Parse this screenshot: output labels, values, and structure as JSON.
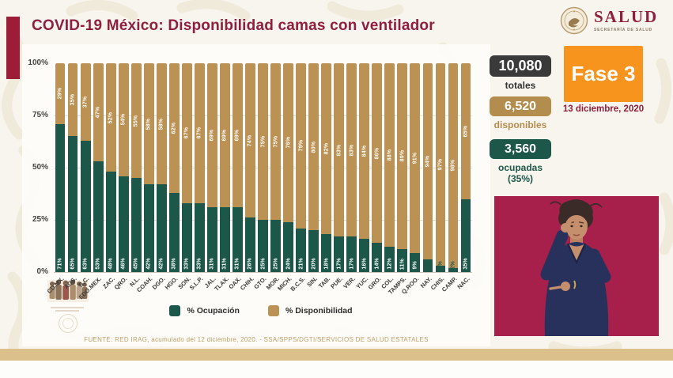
{
  "header": {
    "title": "COVID-19 México: Disponibilidad camas con ventilador"
  },
  "logo": {
    "title": "SALUD",
    "subtitle": "SECRETARÍA DE SALUD"
  },
  "phase": {
    "label": "Fase 3",
    "date": "13 diciembre, 2020"
  },
  "stats": [
    {
      "value": "10,080",
      "label": "totales",
      "box_color": "#3a3a3a"
    },
    {
      "value": "6,520",
      "label": "disponibles",
      "box_color": "#b38d4d"
    },
    {
      "value": "3,560",
      "label": "ocupadas",
      "sublabel": "(35%)",
      "box_color": "#1d574a"
    }
  ],
  "chart_data": {
    "type": "bar",
    "stacked": true,
    "title": "",
    "categories": [
      "CD.MX.",
      "AGS.",
      "B.C.",
      "EDO.MEX.",
      "ZAC.",
      "QRO.",
      "N.L.",
      "COAH.",
      "DGO.",
      "HGO.",
      "SON.",
      "S.L.P.",
      "JAL.",
      "TLAX.",
      "OAX.",
      "CHIH.",
      "GTO.",
      "MOR.",
      "MICH.",
      "B.C.S.",
      "SIN.",
      "TAB.",
      "PUE.",
      "VER.",
      "YUC.",
      "GRO.",
      "COL.",
      "TAMPS.",
      "Q.ROO.",
      "NAY.",
      "CHIS.",
      "CAMP.",
      "NAC."
    ],
    "series": [
      {
        "name": "% Ocupación",
        "color": "#1d574a",
        "values": [
          71,
          65,
          63,
          53,
          48,
          46,
          45,
          42,
          42,
          38,
          33,
          33,
          31,
          31,
          31,
          26,
          25,
          25,
          24,
          21,
          20,
          18,
          17,
          17,
          16,
          14,
          12,
          11,
          9,
          6,
          3,
          2,
          35
        ]
      },
      {
        "name": "% Disponibilidad",
        "color": "#bb9254",
        "values": [
          29,
          35,
          37,
          47,
          52,
          54,
          55,
          58,
          58,
          62,
          67,
          67,
          69,
          69,
          69,
          74,
          75,
          75,
          76,
          79,
          80,
          82,
          83,
          83,
          84,
          86,
          88,
          89,
          91,
          94,
          97,
          98,
          65
        ]
      }
    ],
    "ylim": [
      0,
      100
    ],
    "yticks": [
      "100%",
      "75%",
      "50%",
      "25%",
      "0%"
    ],
    "grid": true,
    "legend_position": "bottom",
    "value_label_format": "{value}%"
  },
  "footer": {
    "source": "FUENTE: RED IRAG, acumulado del 12 diciembre, 2020. - SSA/SPPS/DGTI/SERVICIOS DE SALUD ESTATALES"
  },
  "colors": {
    "title": "#8e1f3e",
    "accent_bar": "#9d1d38",
    "occupied": "#1d574a",
    "available": "#bb9254",
    "phase_box": "#f7941e",
    "bottom_band": "#dcc08c",
    "interpreter_background": "#a7204b"
  }
}
